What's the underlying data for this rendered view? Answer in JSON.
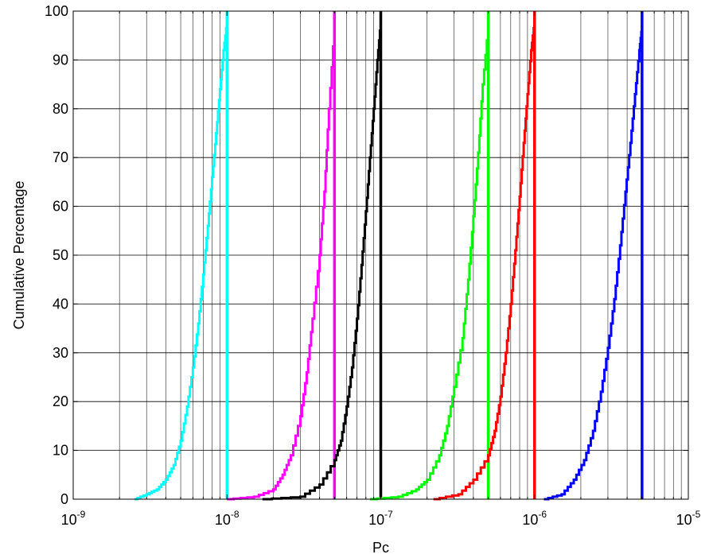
{
  "chart_data": {
    "type": "line",
    "title": "",
    "xlabel": "Pc",
    "ylabel": "Cumulative Percentage",
    "x_scale": "log",
    "xlim": [
      1e-09,
      1e-05
    ],
    "ylim": [
      0,
      100
    ],
    "x_ticks": [
      {
        "base": "10",
        "exp": "-9"
      },
      {
        "base": "10",
        "exp": "-8"
      },
      {
        "base": "10",
        "exp": "-7"
      },
      {
        "base": "10",
        "exp": "-6"
      },
      {
        "base": "10",
        "exp": "-5"
      }
    ],
    "y_ticks": [
      "0",
      "10",
      "20",
      "30",
      "40",
      "50",
      "60",
      "70",
      "80",
      "90",
      "100"
    ],
    "grid": true,
    "legend": "none",
    "series": [
      {
        "color": "#00ffff",
        "cap": 1e-08,
        "x": [
          2.5e-09,
          3e-09,
          3.5e-09,
          4e-09,
          4.5e-09,
          5e-09,
          5.5e-09,
          6e-09,
          6.5e-09,
          7e-09,
          7.5e-09,
          8e-09,
          8.5e-09,
          9e-09,
          9.5e-09,
          1e-08,
          1e-08
        ],
        "y": [
          0,
          1,
          2,
          4,
          7,
          12,
          19,
          27,
          36,
          46,
          56,
          66,
          75,
          84,
          92,
          98,
          100
        ]
      },
      {
        "color": "#ff00ff",
        "cap": 5e-08,
        "x": [
          1e-08,
          1.5e-08,
          2e-08,
          2.3e-08,
          2.6e-08,
          3e-08,
          3.3e-08,
          3.6e-08,
          4e-08,
          4.3e-08,
          4.6e-08,
          5e-08,
          5e-08
        ],
        "y": [
          0,
          0.5,
          2,
          5,
          9,
          17,
          26,
          37,
          50,
          63,
          80,
          97,
          100
        ]
      },
      {
        "color": "#000000",
        "cap": 1e-07,
        "x": [
          1.7e-08,
          3e-08,
          4e-08,
          5e-08,
          5.5e-08,
          6e-08,
          6.5e-08,
          7e-08,
          7.5e-08,
          8e-08,
          8.5e-08,
          9e-08,
          9.5e-08,
          1e-07,
          1e-07
        ],
        "y": [
          0,
          0.5,
          3,
          8,
          12,
          19,
          27,
          37,
          48,
          59,
          70,
          80,
          90,
          98,
          100
        ]
      },
      {
        "color": "#00ff00",
        "cap": 5e-07,
        "x": [
          8.5e-08,
          1.3e-07,
          1.7e-07,
          2e-07,
          2.4e-07,
          2.7e-07,
          3e-07,
          3.4e-07,
          3.7e-07,
          4e-07,
          4.3e-07,
          4.6e-07,
          5e-07,
          5e-07
        ],
        "y": [
          0,
          0.5,
          2,
          4,
          9,
          15,
          23,
          33,
          45,
          58,
          71,
          85,
          97,
          100
        ]
      },
      {
        "color": "#ff0000",
        "cap": 1e-06,
        "x": [
          2.2e-07,
          3.2e-07,
          4e-07,
          5e-07,
          5.5e-07,
          6e-07,
          6.5e-07,
          7e-07,
          7.5e-07,
          8e-07,
          8.5e-07,
          9e-07,
          9.5e-07,
          1e-06,
          1e-06
        ],
        "y": [
          0,
          1,
          4,
          9,
          14,
          21,
          30,
          40,
          51,
          62,
          73,
          83,
          92,
          98,
          100
        ]
      },
      {
        "color": "#0000ff",
        "cap": 5e-06,
        "x": [
          1.15e-06,
          1.5e-06,
          1.8e-06,
          2.1e-06,
          2.4e-06,
          2.7e-06,
          3e-06,
          3.3e-06,
          3.6e-06,
          3.9e-06,
          4.2e-06,
          4.5e-06,
          4.8e-06,
          5e-06,
          5e-06
        ],
        "y": [
          0,
          1,
          4,
          8,
          14,
          22,
          31,
          41,
          52,
          63,
          73,
          83,
          92,
          97,
          100
        ]
      }
    ]
  }
}
